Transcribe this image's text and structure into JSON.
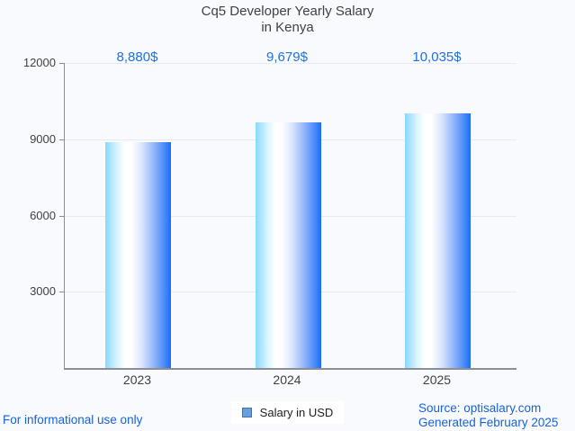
{
  "title": {
    "line1": "Cq5 Developer Yearly Salary",
    "line2": "in Kenya"
  },
  "chart_data": {
    "type": "bar",
    "title": "Cq5 Developer Yearly Salary in Kenya",
    "categories": [
      "2023",
      "2024",
      "2025"
    ],
    "values": [
      8880,
      9679,
      10035
    ],
    "value_labels": [
      "8,880$",
      "9,679$",
      "10,035$"
    ],
    "series_name": "Salary in USD",
    "xlabel": "",
    "ylabel": "",
    "ylim": [
      0,
      12000
    ],
    "yticks": [
      12000,
      9000,
      6000,
      3000
    ],
    "grid": "horizontal",
    "legend_position": "bottom-center"
  },
  "legend": {
    "label": "Salary in USD",
    "swatch_color": "#63a0dd",
    "swatch_border_color": "#3e73ad"
  },
  "footer": {
    "left": "For informational use only",
    "source": "Source: optisalary.com",
    "generated": "Generated February 2025"
  },
  "colors": {
    "background": "#f8fafd",
    "accent_blue_values": "#2070e2",
    "accent_blue_footer": "#1763d9",
    "bar_gradient_left": "#87d9ff",
    "bar_gradient_mid": "#ffffff",
    "bar_gradient_right": "#1a6df8",
    "axis": "#8a8f94",
    "gridline": "#e7eaee",
    "text_dark": "#3f4245"
  }
}
